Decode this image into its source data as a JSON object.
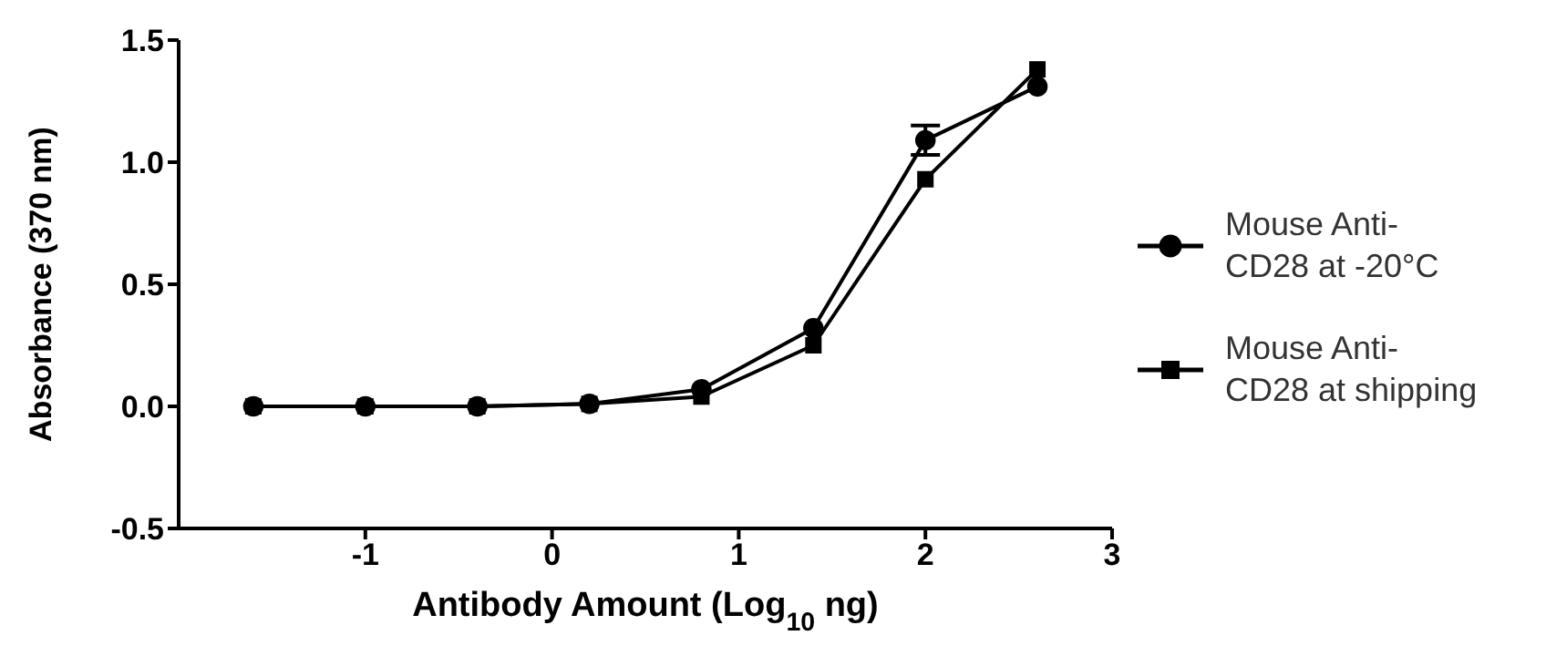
{
  "chart_data": {
    "type": "line",
    "xlabel": "Antibody Amount (Log$_{10}$ ng)",
    "ylabel": "Absorbance (370 nm)",
    "x": [
      -1.6,
      -1,
      -0.4,
      0.2,
      0.8,
      1.4,
      2.0,
      2.6
    ],
    "series": [
      {
        "name": "Mouse Anti-CD28 at -20°C",
        "color": "#000000",
        "marker": "circle",
        "values": [
          0,
          0,
          0,
          0.01,
          0.07,
          0.32,
          1.09,
          1.31
        ],
        "errors": [
          null,
          null,
          null,
          null,
          null,
          null,
          0.06,
          null
        ]
      },
      {
        "name": "Mouse Anti-CD28 at shipping",
        "color": "#000000",
        "marker": "square",
        "values": [
          0,
          0,
          0,
          0.01,
          0.04,
          0.25,
          0.93,
          1.38
        ]
      }
    ],
    "xlim": [
      -2,
      3
    ],
    "xticks": [
      -1,
      0,
      1,
      2,
      3
    ],
    "ylim": [
      -0.5,
      1.5
    ],
    "yticks": [
      {
        "value": -0.5,
        "label": "-0.5"
      },
      {
        "value": 0,
        "label": "0.0"
      },
      {
        "value": 0.5,
        "label": "0.5"
      },
      {
        "value": 1,
        "label": "1.0"
      },
      {
        "value": 1.5,
        "label": "1.5"
      }
    ],
    "grid": false,
    "legend": "right",
    "line_style": "solid"
  }
}
